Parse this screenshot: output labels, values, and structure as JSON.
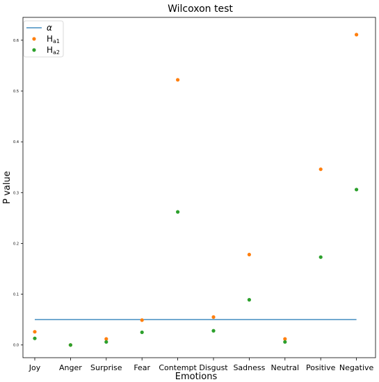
{
  "chart_data": {
    "type": "scatter",
    "title": "Wilcoxon test",
    "xlabel": "Emotions",
    "ylabel": "P value",
    "categories": [
      "Joy",
      "Anger",
      "Surprise",
      "Fear",
      "Contempt",
      "Disgust",
      "Sadness",
      "Neutral",
      "Positive",
      "Negative"
    ],
    "ylim": [
      -0.025,
      0.645
    ],
    "yticks": [
      0.0,
      0.1,
      0.2,
      0.3,
      0.4,
      0.5,
      0.6
    ],
    "ytick_labels": [
      "0.0",
      "0.1",
      "0.2",
      "0.3",
      "0.4",
      "0.5",
      "0.6"
    ],
    "grid": false,
    "legend_position": "top-left",
    "alpha_line": {
      "name": "α",
      "value": 0.05,
      "color": "#1f77b4"
    },
    "series": [
      {
        "name": "H",
        "sub": "a1",
        "color": "#ff7f0e",
        "values": [
          0.026,
          0.0,
          0.012,
          0.049,
          0.522,
          0.055,
          0.178,
          0.012,
          0.346,
          0.611
        ]
      },
      {
        "name": "H",
        "sub": "a2",
        "color": "#2ca02c",
        "values": [
          0.013,
          0.0,
          0.006,
          0.025,
          0.262,
          0.028,
          0.089,
          0.006,
          0.173,
          0.306
        ]
      }
    ]
  }
}
